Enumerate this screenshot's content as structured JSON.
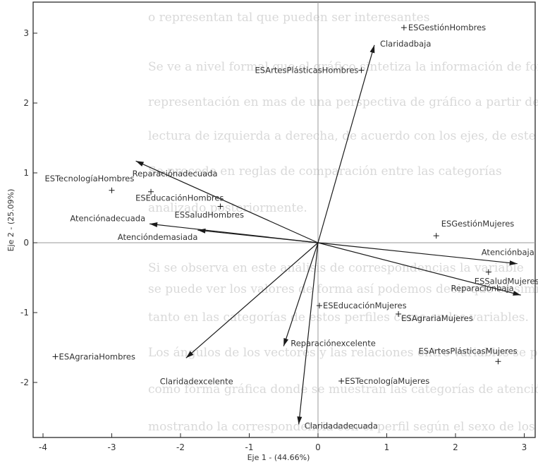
{
  "background_text": [
    "o representan tal que pueden ser interesantes",
    "Se ve a nivel formal que el gráfico sintetiza la información de forma bastante",
    "representación en mas de una perspectiva de gráfico a partir de las variables de",
    "lectura de izquierda a derecha, de acuerdo con los ejes, de este tipo de",
    "Se procede en reglas de comparación entre las categorías",
    "analizado posteriormente.",
    "Si se observa en este análisis de correspondencias la variable",
    "se puede ver los valores de forma así podemos decir que es similar",
    "tanto en las categorías de estos perfiles como en las variables.",
    "Los ángulos de los vectores y las relaciones entre variables se pueden",
    "como forma gráfica donde se muestran las categorías de atención",
    "mostrando la correspondencia con el perfil según el sexo de los profesores"
  ],
  "chart_data": {
    "type": "scatter",
    "subtype": "biplot",
    "xlabel": "Eje 1 - (44.66%)",
    "ylabel": "Eje 2 - (25.09%)",
    "xlim": [
      -4.2,
      3.3
    ],
    "ylim": [
      -2.95,
      3.3
    ],
    "xticks": [
      "-4",
      "-3",
      "-2",
      "-1",
      "0",
      "1",
      "2",
      "3"
    ],
    "yticks": [
      "3",
      "2",
      "1",
      "0",
      "-1",
      "-2"
    ],
    "xtick_values": [
      -4,
      -3,
      -2,
      -1,
      0,
      1,
      2,
      3
    ],
    "ytick_values": [
      3,
      2,
      1,
      0,
      -1,
      -2
    ],
    "points": [
      {
        "label": "ESGestiónHombres",
        "x": 1.25,
        "y": 3.08
      },
      {
        "label": "ESArtesPlásticasHombres",
        "x": 0.63,
        "y": 2.47
      },
      {
        "label": "ESTecnologíaHombres",
        "x": -3.0,
        "y": 0.75
      },
      {
        "label": "ESEducaciónHombres",
        "x": -2.43,
        "y": 0.73
      },
      {
        "label": "ESSaludHombres",
        "x": -1.42,
        "y": 0.52
      },
      {
        "label": "ESGestiónMujeres",
        "x": 1.72,
        "y": 0.1
      },
      {
        "label": "ESSaludMujeres",
        "x": 2.48,
        "y": -0.42
      },
      {
        "label": "ESEducaciónMujeres",
        "x": 0.02,
        "y": -0.9
      },
      {
        "label": "ESAgrariaMujeres",
        "x": 1.17,
        "y": -1.02
      },
      {
        "label": "ESArtesPlásticasMujeres",
        "x": 2.62,
        "y": -1.7
      },
      {
        "label": "ESAgrariaHombres",
        "x": -3.82,
        "y": -1.63
      },
      {
        "label": "ESTecnologíaMujeres",
        "x": 0.34,
        "y": -1.98
      }
    ],
    "vectors": [
      {
        "label": "Claridadbaja",
        "x": 0.82,
        "y": 2.83
      },
      {
        "label": "Reparaciónadecuada",
        "x": -2.65,
        "y": 1.17
      },
      {
        "label": "Atenciónadecuada",
        "x": -2.45,
        "y": 0.27
      },
      {
        "label": "Atencióndemasiada",
        "x": -1.75,
        "y": 0.18
      },
      {
        "label": "Atenciónbaja",
        "x": 2.9,
        "y": -0.3
      },
      {
        "label": "Reparaciónbaja",
        "x": 2.95,
        "y": -0.75
      },
      {
        "label": "Reparaciónexcelente",
        "x": -0.5,
        "y": -1.48
      },
      {
        "label": "Claridadexcelente",
        "x": -1.92,
        "y": -1.65
      },
      {
        "label": "Claridadadecuada",
        "x": -0.28,
        "y": -2.6
      }
    ],
    "grid": false,
    "legend": "none"
  }
}
